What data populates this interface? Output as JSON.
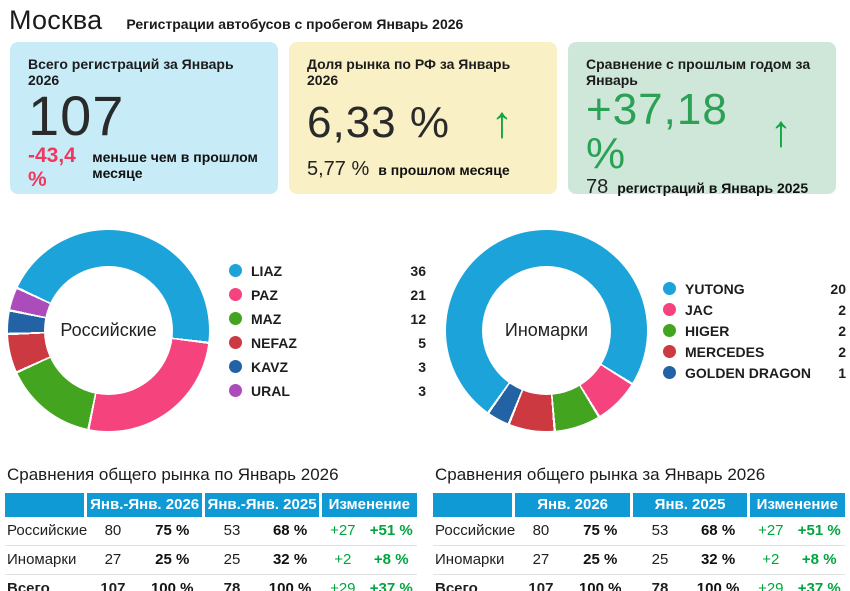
{
  "page": {
    "title": "Москва",
    "subtitle": "Регистрации автобусов с пробегом Январь 2026"
  },
  "colors": {
    "card_total_bg": "#c7ecf8",
    "card_share_bg": "#f9f0c5",
    "card_yoy_bg": "#cee7d8",
    "negative_pink": "#f1375e",
    "positive_green": "#00a53f",
    "value_green": "#2aa155",
    "arrow_green": "#10a442",
    "table_header_blue": "#0f9ad6"
  },
  "cards": [
    {
      "title": "Всего регистраций за Январь 2026",
      "value": "107",
      "footer_value": "-43,4 %",
      "footer_note": "меньше чем в прошлом месяце",
      "arrow": "none"
    },
    {
      "title": "Доля рынка по РФ за Январь 2026",
      "value": "6,33 %",
      "footer_value": "5,77 %",
      "footer_note": "в прошлом месяце",
      "arrow": "up"
    },
    {
      "title": "Сравнение с прошлым годом за Январь",
      "value": "+37,18 %",
      "footer_value": "78",
      "footer_note": "регистраций в Январь 2025",
      "arrow": "up"
    }
  ],
  "chart_data": [
    {
      "type": "pie",
      "title": "Российские",
      "labels": [
        "LIAZ",
        "PAZ",
        "MAZ",
        "NEFAZ",
        "KAVZ",
        "URAL"
      ],
      "values": [
        36,
        21,
        12,
        5,
        3,
        3
      ],
      "colors": [
        "#1ba3da",
        "#f5437e",
        "#43a51f",
        "#cc3940",
        "#2363a5",
        "#ab4cba"
      ],
      "hole": 0.64,
      "rotation": 295,
      "legend_position": "right"
    },
    {
      "type": "pie",
      "title": "Иномарки",
      "labels": [
        "YUTONG",
        "JAC",
        "HIGER",
        "MERCEDES",
        "GOLDEN DRAGON"
      ],
      "values": [
        20,
        2,
        2,
        2,
        1
      ],
      "colors": [
        "#1ba3da",
        "#f5437e",
        "#43a51f",
        "#cc3940",
        "#2363a5"
      ],
      "hole": 0.64,
      "rotation": 215.3,
      "legend_position": "right"
    },
    {
      "type": "table",
      "title": "Сравнения общего рынка по Январь 2026",
      "columns": [
        "",
        "Янв.-Янв. 2026",
        "Янв.-Янв. 2025",
        "Изменение"
      ],
      "rows": [
        [
          "Российские",
          "80",
          "75 %",
          "53",
          "68 %",
          "+27",
          "+51 %"
        ],
        [
          "Иномарки",
          "27",
          "25 %",
          "25",
          "32 %",
          "+2",
          "+8 %"
        ],
        [
          "Всего",
          "107",
          "100 %",
          "78",
          "100 %",
          "+29",
          "+37 %"
        ]
      ]
    },
    {
      "type": "table",
      "title": "Сравнения общего рынка за Январь 2026",
      "columns": [
        "",
        "Янв. 2026",
        "Янв. 2025",
        "Изменение"
      ],
      "rows": [
        [
          "Российские",
          "80",
          "75 %",
          "53",
          "68 %",
          "+27",
          "+51 %"
        ],
        [
          "Иномарки",
          "27",
          "25 %",
          "25",
          "32 %",
          "+2",
          "+8 %"
        ],
        [
          "Всего",
          "107",
          "100 %",
          "78",
          "100 %",
          "+29",
          "+37 %"
        ]
      ]
    }
  ]
}
